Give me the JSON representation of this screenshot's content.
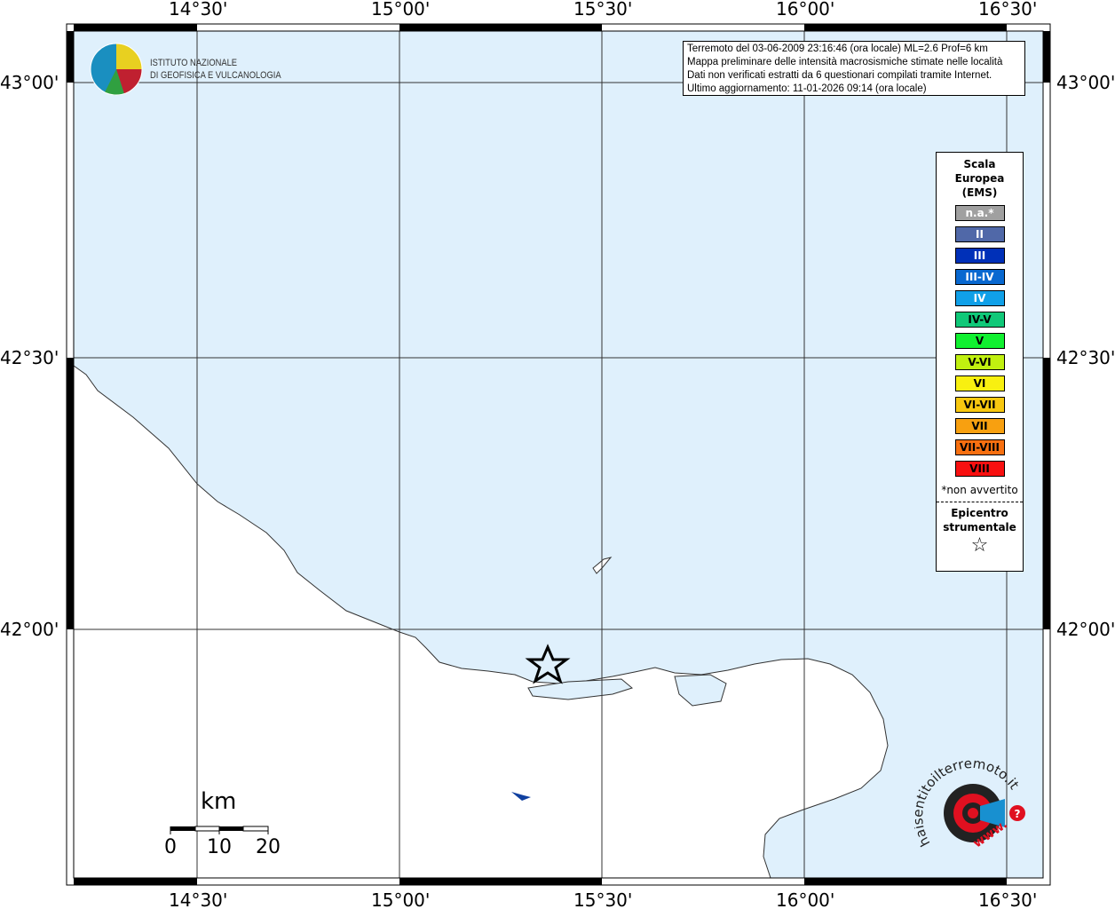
{
  "map": {
    "lon_ticks": [
      "14°30'",
      "15°00'",
      "15°30'",
      "16°00'",
      "16°30'"
    ],
    "lat_ticks": [
      "43°00'",
      "42°30'",
      "42°00'"
    ],
    "sea_color": "#dff0fc",
    "land_color": "#ffffff"
  },
  "logo": {
    "line1": "ISTITUTO NAZIONALE",
    "line2": "DI GEOFISICA E VULCANOLOGIA"
  },
  "info": {
    "line1": "Terremoto del 03-06-2009 23:16:46 (ora locale) ML=2.6 Prof=6 km",
    "line2": "Mappa preliminare delle intensità macrosismiche stimate nelle località",
    "line3": "Dati non verificati estratti da 6 questionari compilati tramite Internet.",
    "line4": "Ultimo aggiornamento: 11-01-2026 09:14 (ora locale)"
  },
  "legend": {
    "title": [
      "Scala",
      "Europea",
      "(EMS)"
    ],
    "items": [
      {
        "label": "n.a.*",
        "color": "#a0a0a0",
        "text": "#ffffff"
      },
      {
        "label": "II",
        "color": "#5068a8",
        "text": "#ffffff"
      },
      {
        "label": "III",
        "color": "#0030b8",
        "text": "#ffffff"
      },
      {
        "label": "III-IV",
        "color": "#0868d0",
        "text": "#ffffff"
      },
      {
        "label": "IV",
        "color": "#10a0e8",
        "text": "#ffffff"
      },
      {
        "label": "IV-V",
        "color": "#10c878",
        "text": "#000000"
      },
      {
        "label": "V",
        "color": "#10f030",
        "text": "#000000"
      },
      {
        "label": "V-VI",
        "color": "#c0f010",
        "text": "#000000"
      },
      {
        "label": "VI",
        "color": "#f8f010",
        "text": "#000000"
      },
      {
        "label": "VI-VII",
        "color": "#f8c810",
        "text": "#000000"
      },
      {
        "label": "VII",
        "color": "#f8a010",
        "text": "#000000"
      },
      {
        "label": "VII-VIII",
        "color": "#f87010",
        "text": "#000000"
      },
      {
        "label": "VIII",
        "color": "#f81010",
        "text": "#000000"
      }
    ],
    "note": "*non avvertito",
    "epicenter": [
      "Epicentro",
      "strumentale"
    ],
    "star": "☆"
  },
  "scalebar": {
    "unit": "km",
    "labels": [
      "0",
      "10",
      "20"
    ]
  },
  "badge": {
    "text": "haisentitoilterremoto.it",
    "www": "www."
  }
}
